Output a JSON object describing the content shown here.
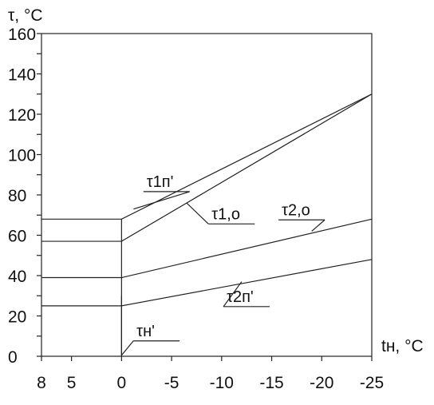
{
  "chart_data": {
    "type": "line",
    "ylabel": "τ, °C",
    "xlabel": "tн, °C",
    "xlim": [
      8,
      -25
    ],
    "ylim": [
      0,
      160
    ],
    "x_ticks": [
      8,
      5,
      0,
      -5,
      -10,
      -15,
      -20,
      -25
    ],
    "x_tick_labels": [
      "8",
      "5",
      "0",
      "-5",
      "-10",
      "-15",
      "-20",
      "-25"
    ],
    "y_ticks": [
      0,
      20,
      40,
      60,
      80,
      100,
      120,
      140,
      160
    ],
    "y_tick_labels": [
      "0",
      "20",
      "40",
      "60",
      "80",
      "100",
      "120",
      "140",
      "160"
    ],
    "series": [
      {
        "id": "t1n",
        "x": [
          8,
          0,
          -25
        ],
        "y": [
          68,
          68,
          130
        ]
      },
      {
        "id": "t1o",
        "x": [
          8,
          0,
          -25
        ],
        "y": [
          57,
          57,
          130
        ]
      },
      {
        "id": "t2o",
        "x": [
          8,
          0,
          -25
        ],
        "y": [
          39,
          39,
          68
        ]
      },
      {
        "id": "t2n",
        "x": [
          8,
          0,
          -25
        ],
        "y": [
          25,
          25,
          48
        ]
      },
      {
        "id": "tn",
        "x": [
          0,
          0
        ],
        "y": [
          0,
          30
        ]
      }
    ],
    "annotations": [
      {
        "id": "t1n",
        "text": "τ1п'",
        "x": -1.2,
        "y": 73,
        "lx": -2.5,
        "ly": 84
      },
      {
        "id": "t1o",
        "text": "τ1,о",
        "x": -6.5,
        "y": 76,
        "lx": -9.0,
        "ly": 68
      },
      {
        "id": "t2o",
        "text": "τ2,о",
        "x": -19.0,
        "y": 62,
        "lx": -16.0,
        "ly": 70
      },
      {
        "id": "t2n",
        "text": "τ2п'",
        "x": -12.0,
        "y": 37,
        "lx": -10.5,
        "ly": 27
      },
      {
        "id": "tn",
        "text": "τн'",
        "x": 0.0,
        "y": 0.5,
        "lx": -1.5,
        "ly": 10
      }
    ]
  }
}
